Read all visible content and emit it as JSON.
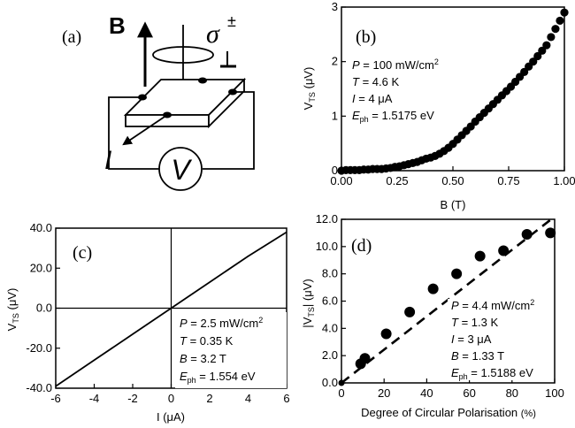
{
  "panels": {
    "a": {
      "label": "(a)",
      "field_label": "B",
      "polarisation_symbol": "σ",
      "polarisation_sign": "±",
      "current_symbol": "I",
      "voltmeter_symbol": "V"
    },
    "b": {
      "label": "(b)"
    },
    "c": {
      "label": "(c)"
    },
    "d": {
      "label": "(d)"
    }
  },
  "chart_data": [
    {
      "panel": "b",
      "type": "scatter",
      "xlabel": "B (T)",
      "ylabel": "V_TS (μV)",
      "xlim": [
        0,
        1
      ],
      "ylim": [
        0,
        3
      ],
      "xticks": [
        "0.00",
        "0.25",
        "0.50",
        "0.75",
        "1.00"
      ],
      "yticks": [
        "0",
        "1",
        "2",
        "3"
      ],
      "annotations": [
        "P = 100 mW/cm²",
        "T = 4.6 K",
        "I = 4 μA",
        "E_ph = 1.5175 eV"
      ],
      "series": [
        {
          "x": [
            0.0,
            0.02,
            0.04,
            0.06,
            0.08,
            0.1,
            0.12,
            0.14,
            0.16,
            0.18,
            0.2,
            0.22,
            0.24,
            0.26,
            0.28,
            0.3,
            0.32,
            0.34,
            0.36,
            0.38,
            0.4,
            0.42,
            0.44,
            0.46,
            0.48,
            0.5,
            0.52,
            0.54,
            0.56,
            0.58,
            0.6,
            0.62,
            0.64,
            0.66,
            0.68,
            0.7,
            0.72,
            0.74,
            0.76,
            0.78,
            0.8,
            0.82,
            0.84,
            0.86,
            0.88,
            0.9,
            0.92,
            0.94,
            0.96,
            0.98,
            1.0
          ],
          "y": [
            0.0,
            0.01,
            0.01,
            0.01,
            0.01,
            0.02,
            0.02,
            0.03,
            0.03,
            0.03,
            0.04,
            0.05,
            0.07,
            0.08,
            0.1,
            0.12,
            0.14,
            0.16,
            0.19,
            0.22,
            0.24,
            0.27,
            0.31,
            0.36,
            0.42,
            0.49,
            0.57,
            0.65,
            0.73,
            0.81,
            0.9,
            0.98,
            1.06,
            1.14,
            1.22,
            1.3,
            1.38,
            1.46,
            1.54,
            1.63,
            1.72,
            1.81,
            1.91,
            2.0,
            2.1,
            2.2,
            2.3,
            2.45,
            2.6,
            2.75,
            2.9
          ]
        }
      ]
    },
    {
      "panel": "c",
      "type": "line",
      "xlabel": "I (μA)",
      "ylabel": "V_TS (μV)",
      "xlim": [
        -6,
        6
      ],
      "ylim": [
        -40,
        40
      ],
      "xticks": [
        "-6",
        "-4",
        "-2",
        "0",
        "2",
        "4",
        "6"
      ],
      "yticks": [
        "-40.0",
        "-20.0",
        "0.0",
        "20.0",
        "40.0"
      ],
      "annotations": [
        "P = 2.5 mW/cm²",
        "T = 0.35 K",
        "B = 3.2 T",
        "E_ph = 1.554 eV"
      ],
      "series": [
        {
          "x": [
            -6,
            -4,
            -2,
            0,
            2,
            4,
            6
          ],
          "y": [
            -39.0,
            -26.0,
            -13.0,
            0.0,
            13.0,
            26.0,
            38.0
          ]
        }
      ]
    },
    {
      "panel": "d",
      "type": "scatter",
      "xlabel": "Degree of Circular Polarisation (%)",
      "ylabel": "|V_TS| (μV)",
      "xlim": [
        0,
        100
      ],
      "ylim": [
        0,
        12
      ],
      "xticks": [
        "0",
        "20",
        "40",
        "60",
        "80",
        "100"
      ],
      "yticks": [
        "0.0",
        "2.0",
        "4.0",
        "6.0",
        "8.0",
        "10.0",
        "12.0"
      ],
      "annotations": [
        "P = 4.4 mW/cm²",
        "T = 1.3 K",
        "I = 3 μA",
        "B = 1.33 T",
        "E_ph = 1.5188 eV"
      ],
      "series": [
        {
          "name": "data",
          "x": [
            0,
            9,
            11,
            21,
            32,
            43,
            54,
            65,
            76,
            87,
            98
          ],
          "y": [
            0.0,
            1.4,
            1.8,
            3.6,
            5.2,
            6.9,
            8.0,
            9.3,
            9.7,
            10.9,
            11.0
          ]
        },
        {
          "name": "fit",
          "style": "dashed",
          "x": [
            0,
            100
          ],
          "y": [
            0.0,
            12.2
          ]
        }
      ]
    }
  ]
}
